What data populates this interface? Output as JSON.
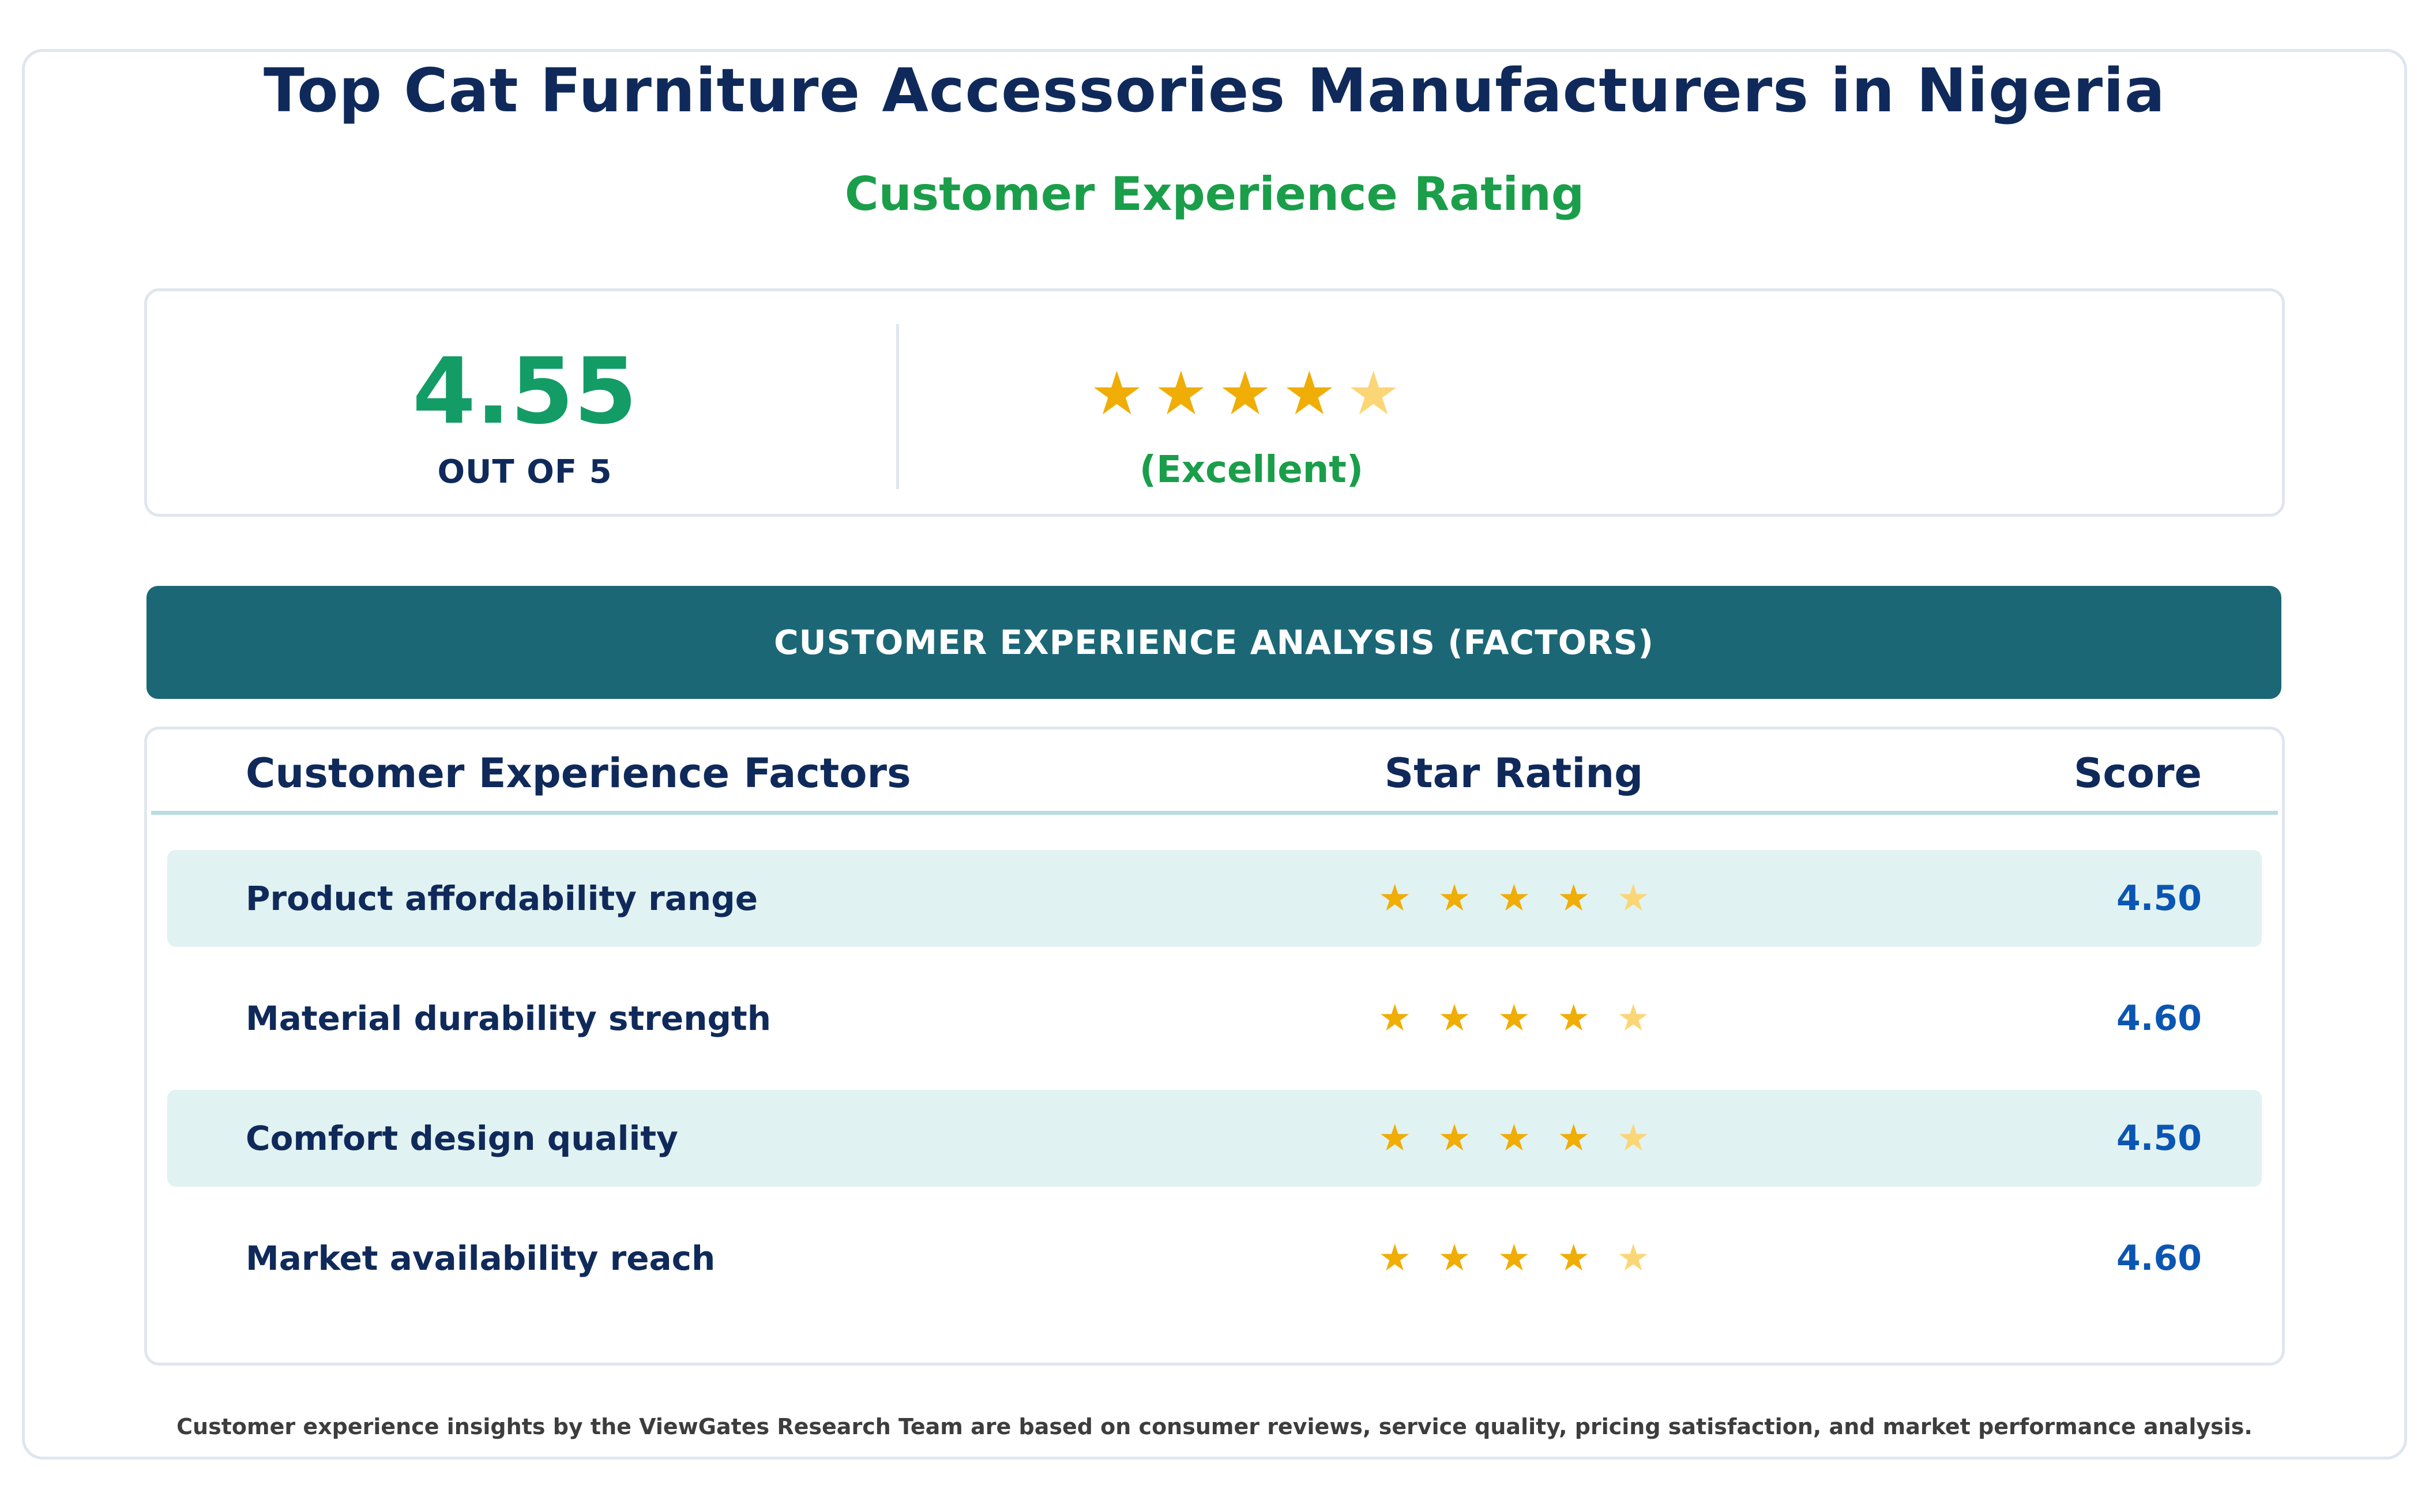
{
  "header": {
    "title": "Top Cat Furniture Accessories Manufacturers in Nigeria",
    "subtitle": "Customer Experience Rating"
  },
  "summary": {
    "score": "4.55",
    "out_of": "OUT OF 5",
    "stars_value": 4.55,
    "rating_word": "(Excellent)"
  },
  "analysis": {
    "banner": "CUSTOMER EXPERIENCE ANALYSIS (FACTORS)",
    "columns": {
      "factor": "Customer Experience Factors",
      "stars": "Star Rating",
      "score": "Score"
    },
    "rows": [
      {
        "label": "Product affordability range",
        "stars_value": 4.5,
        "score": "4.50"
      },
      {
        "label": "Material durability strength",
        "stars_value": 4.6,
        "score": "4.60"
      },
      {
        "label": "Comfort design quality",
        "stars_value": 4.5,
        "score": "4.50"
      },
      {
        "label": "Market availability reach",
        "stars_value": 4.6,
        "score": "4.60"
      }
    ]
  },
  "footer": {
    "note": "Customer experience insights by the ViewGates Research Team are based on consumer reviews, service quality, pricing satisfaction, and market performance analysis."
  },
  "colors": {
    "star_full": "#f0ad06",
    "star_partial": "#fbd676",
    "accent_green": "#1a9e4a",
    "navy": "#0f2a5a",
    "banner_teal": "#1c6776"
  },
  "icons": {
    "star": "star-icon"
  }
}
